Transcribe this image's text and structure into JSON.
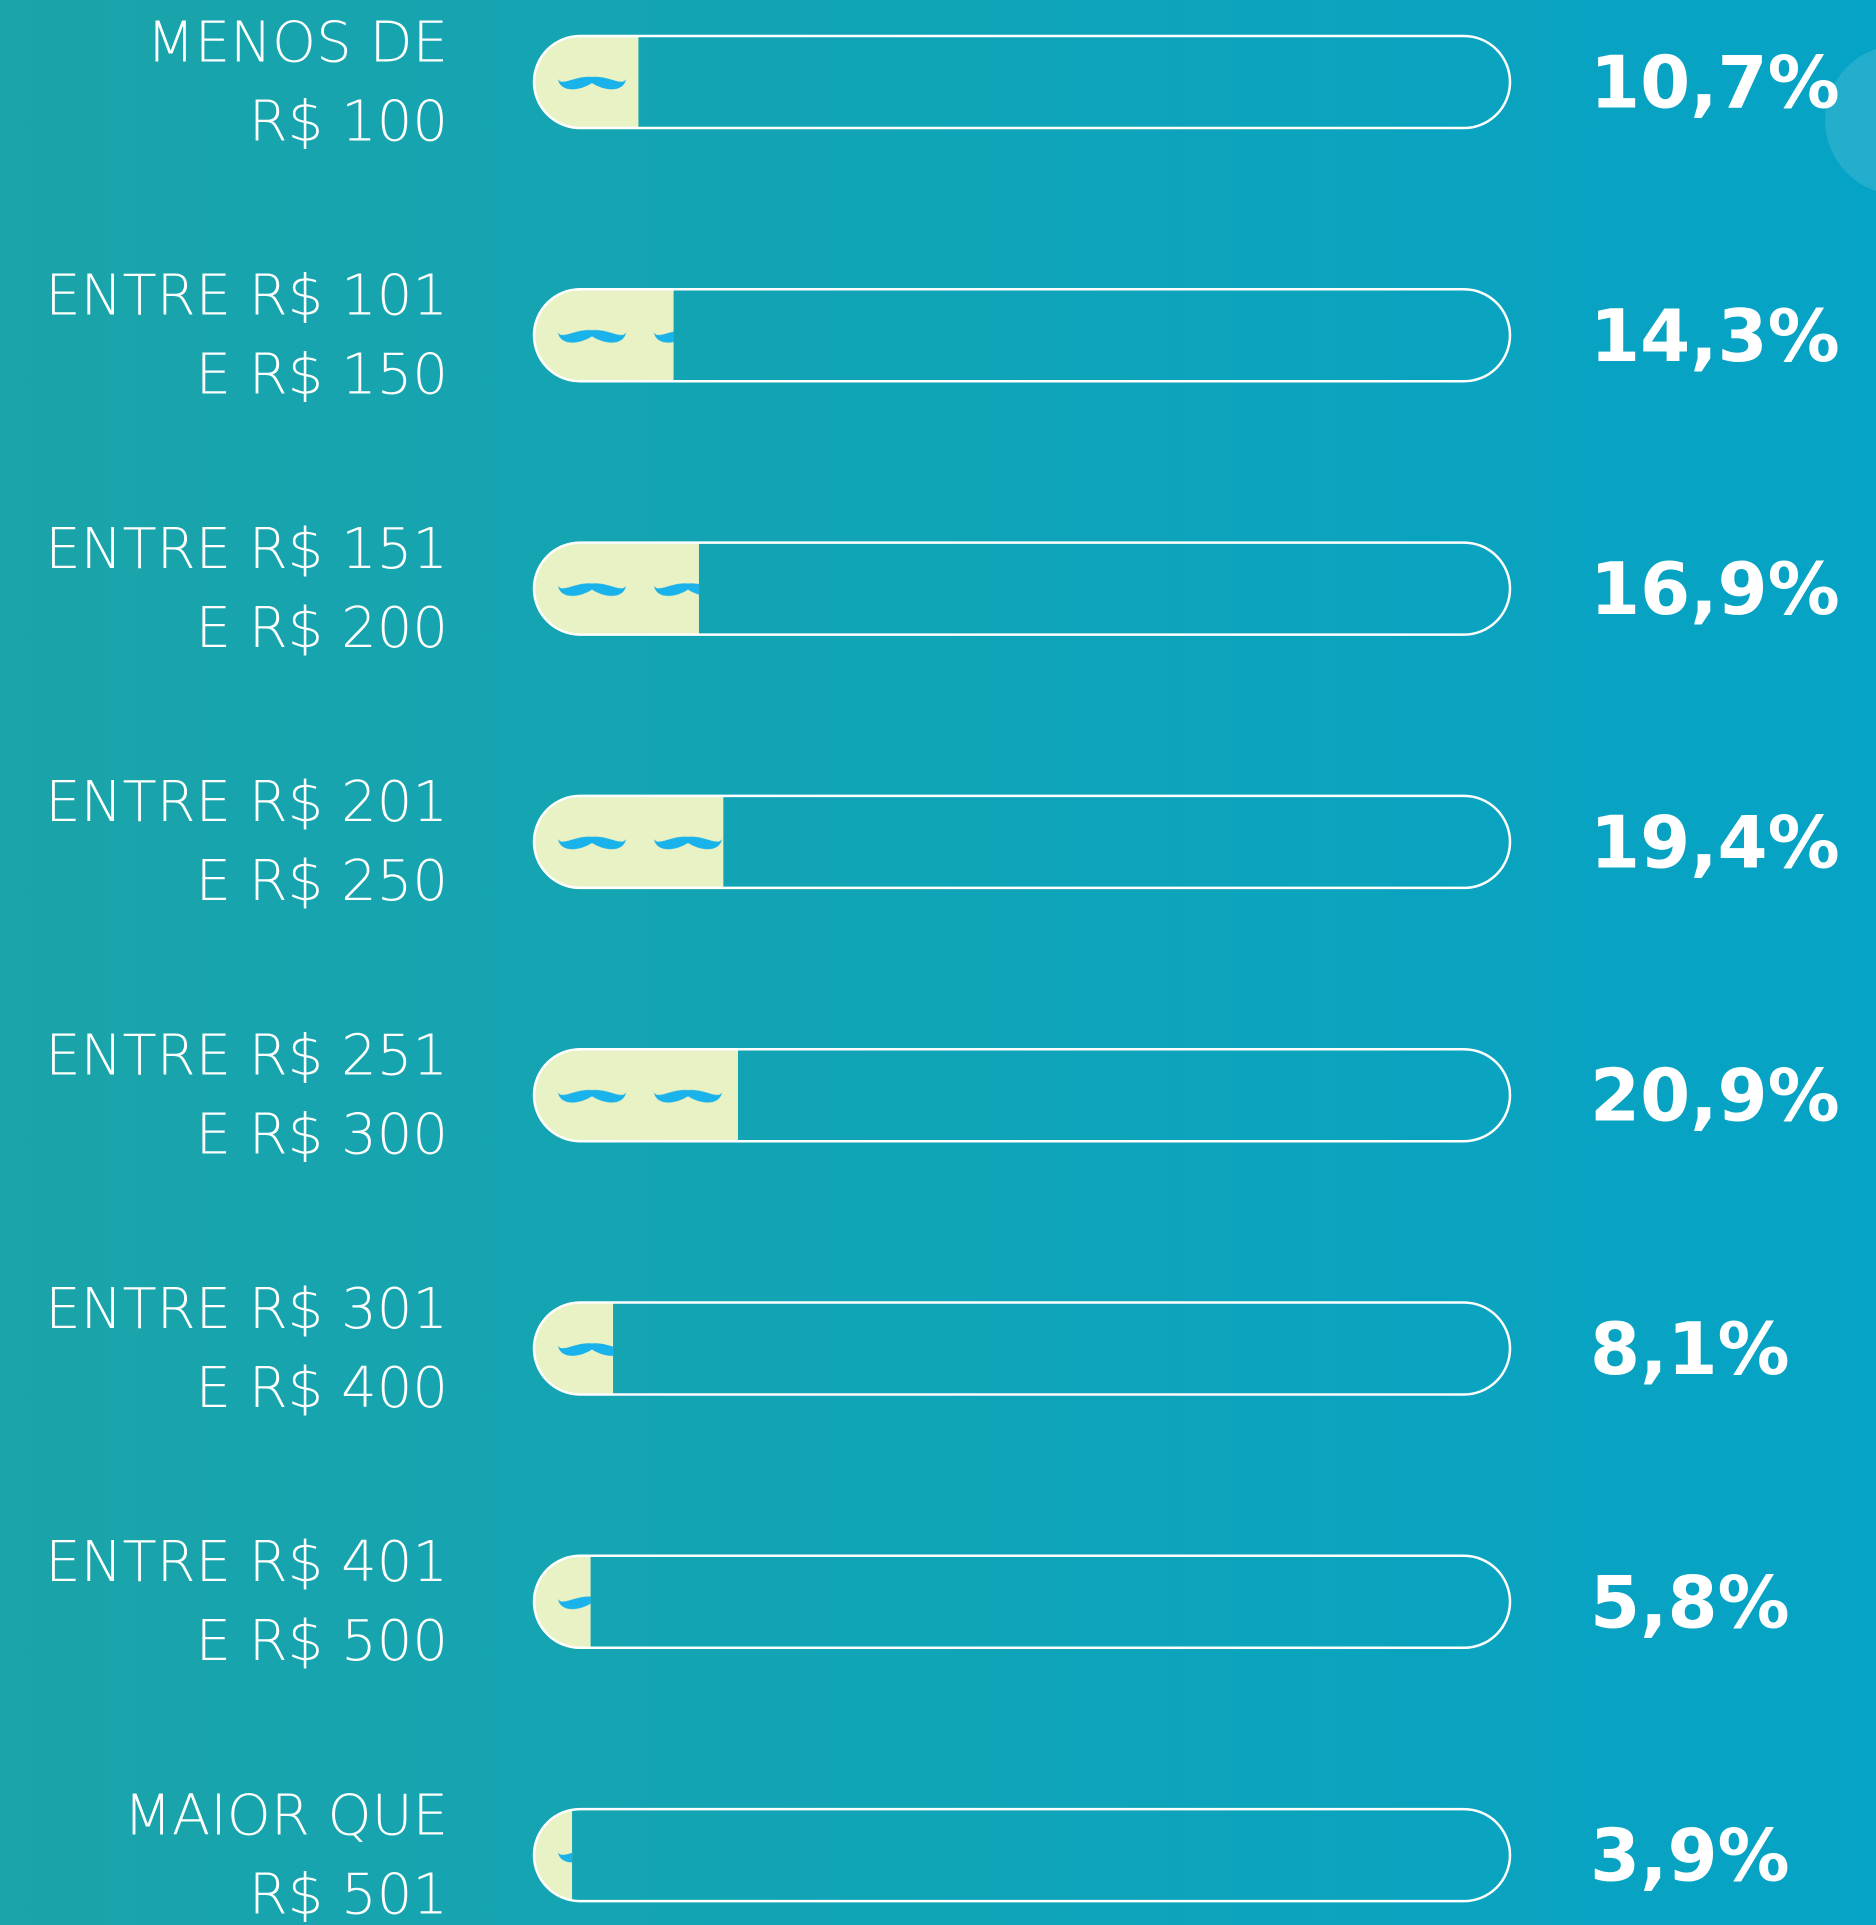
{
  "chart_data": {
    "type": "bar",
    "orientation": "horizontal",
    "categories": [
      [
        "MENOS DE",
        "R$ 100"
      ],
      [
        "ENTRE R$ 101",
        "E R$ 150"
      ],
      [
        "ENTRE R$ 151",
        "E R$ 200"
      ],
      [
        "ENTRE R$ 201",
        "E R$ 250"
      ],
      [
        "ENTRE R$ 251",
        "E R$ 300"
      ],
      [
        "ENTRE R$ 301",
        "E R$ 400"
      ],
      [
        "ENTRE R$ 401",
        "E R$ 500"
      ],
      [
        "MAIOR QUE",
        "R$ 501"
      ]
    ],
    "values": [
      10.7,
      14.3,
      16.9,
      19.4,
      20.9,
      8.1,
      5.8,
      3.9
    ],
    "value_labels": [
      "10,7%",
      "14,3%",
      "16,9%",
      "19,4%",
      "20,9%",
      "8,1%",
      "5,8%",
      "3,9%"
    ],
    "xlim": [
      0,
      100
    ],
    "color": "#e8f2c4"
  }
}
